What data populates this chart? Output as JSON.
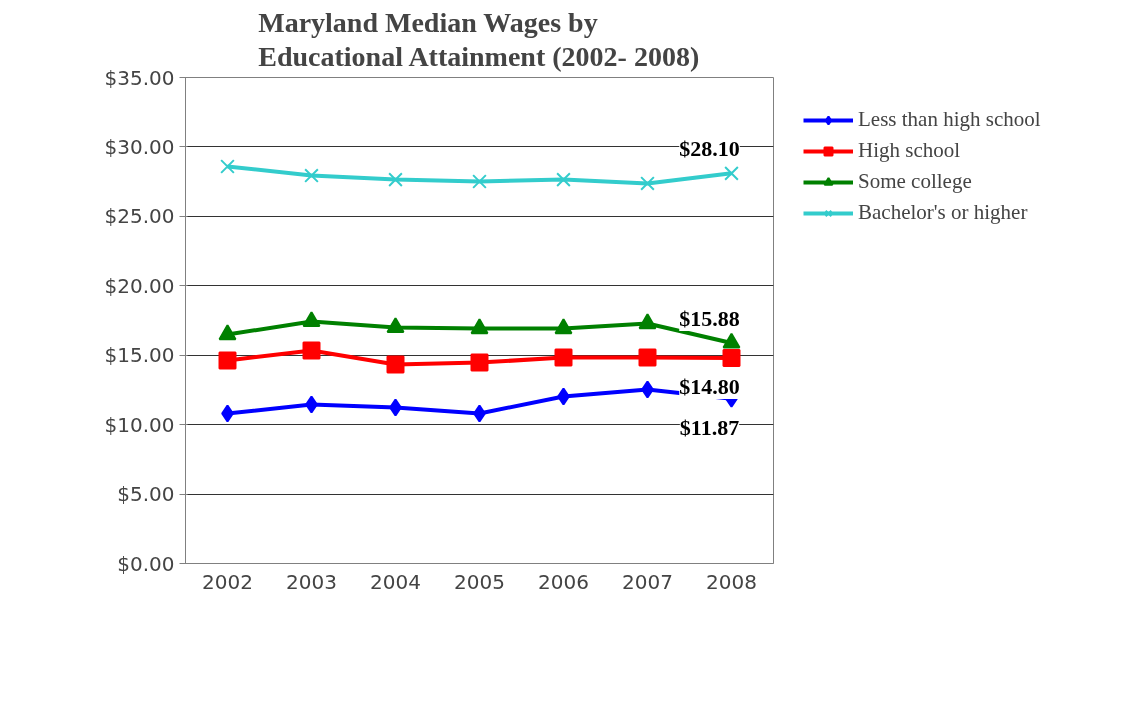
{
  "chart_data": {
    "type": "line",
    "title": "Maryland Median Wages by\nEducational Attainment (2002- 2008)",
    "categories": [
      "2002",
      "2003",
      "2004",
      "2005",
      "2006",
      "2007",
      "2008"
    ],
    "series": [
      {
        "name": "Less than high school",
        "color": "#0000ff",
        "marker": "diamond",
        "values": [
          10.8,
          11.45,
          11.23,
          10.8,
          12.03,
          12.53,
          11.87
        ],
        "value_labels": [
          null,
          null,
          null,
          null,
          null,
          null,
          "$11.87"
        ]
      },
      {
        "name": "High school",
        "color": "#ff0000",
        "marker": "square",
        "values": [
          14.62,
          15.34,
          14.33,
          14.47,
          14.83,
          14.83,
          14.8
        ],
        "value_labels": [
          null,
          null,
          null,
          null,
          null,
          null,
          "$14.80"
        ]
      },
      {
        "name": "Some college",
        "color": "#008000",
        "marker": "triangle",
        "values": [
          16.49,
          17.43,
          17.0,
          16.92,
          16.92,
          17.28,
          15.88
        ],
        "value_labels": [
          null,
          null,
          null,
          null,
          null,
          null,
          "$15.88"
        ]
      },
      {
        "name": "Bachelor's or higher",
        "color": "#33cccc",
        "marker": "cross",
        "values": [
          28.59,
          27.94,
          27.65,
          27.51,
          27.65,
          27.37,
          28.1
        ],
        "value_labels": [
          null,
          null,
          null,
          null,
          null,
          null,
          "$28.10"
        ]
      }
    ],
    "ylim": [
      0,
      35
    ],
    "yticks": [
      {
        "value": 0,
        "label": "$0.00"
      },
      {
        "value": 5,
        "label": "$5.00"
      },
      {
        "value": 10,
        "label": "$10.00"
      },
      {
        "value": 15,
        "label": "$15.00"
      },
      {
        "value": 20,
        "label": "$20.00"
      },
      {
        "value": 25,
        "label": "$25.00"
      },
      {
        "value": 30,
        "label": "$30.00"
      },
      {
        "value": 35,
        "label": "$35.00"
      }
    ],
    "grid": "y",
    "legend": "right",
    "line_style": "solid"
  }
}
